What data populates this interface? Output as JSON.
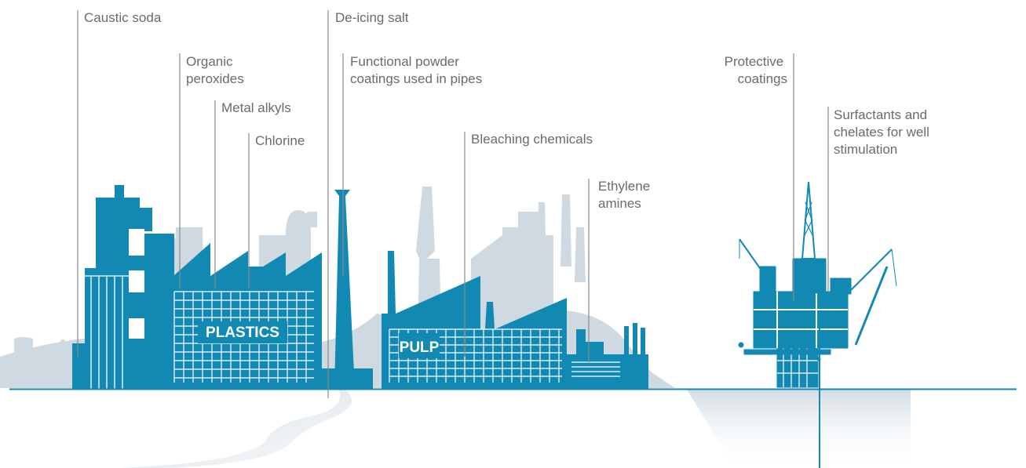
{
  "callouts": {
    "caustic_soda": "Caustic soda",
    "organic_peroxides": [
      "Organic",
      "peroxides"
    ],
    "metal_alkyls": "Metal alkyls",
    "chlorine": "Chlorine",
    "deicing_salt": "De-icing salt",
    "powder_coatings": [
      "Functional powder",
      "coatings used in pipes"
    ],
    "bleaching_chemicals": "Bleaching chemicals",
    "ethylene_amines": [
      "Ethylene",
      "amines"
    ],
    "protective_coatings": [
      "Protective",
      "coatings"
    ],
    "surfactants": [
      "Surfactants and",
      "chelates for well",
      "stimulation"
    ]
  },
  "signs": {
    "plastics": "PLASTICS",
    "pulp": "PULP"
  },
  "colors": {
    "primary": "#1289b3",
    "background_silhouette": "#cfd9e1",
    "label_text": "#6b6b6b",
    "leader_line": "#8a8a8a"
  }
}
